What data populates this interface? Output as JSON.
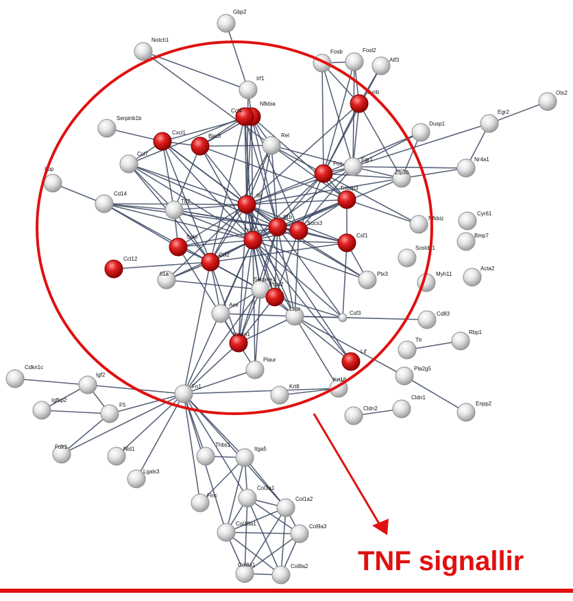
{
  "diagram": {
    "caption": "TNF signallir",
    "colors": {
      "highlight_circle": "#e01010",
      "arrow": "#e01010",
      "edge": "#3a4660",
      "node_grey_light": "#f2f2f2",
      "node_grey_dark": "#a9a9a9",
      "node_red_light": "#ff6b6b",
      "node_red_dark": "#b00000",
      "label": "#111111"
    },
    "nodes": [
      {
        "id": "Gbp2",
        "label": "Gbp2",
        "highlighted": false
      },
      {
        "id": "Notch1",
        "label": "Notch1",
        "highlighted": false
      },
      {
        "id": "Irf1",
        "label": "Irf1",
        "highlighted": false
      },
      {
        "id": "Nfkbia",
        "label": "Nfkbia",
        "highlighted": true
      },
      {
        "id": "Ccl4",
        "label": "Ccl4",
        "highlighted": true
      },
      {
        "id": "Serpinb1b",
        "label": "Serpinb1b",
        "highlighted": false
      },
      {
        "id": "Cxcl1",
        "label": "Cxcl1",
        "highlighted": true
      },
      {
        "id": "Birc3",
        "label": "Birc3",
        "highlighted": true
      },
      {
        "id": "Rel",
        "label": "Rel",
        "highlighted": false
      },
      {
        "id": "Ccl7",
        "label": "Ccl7",
        "highlighted": false
      },
      {
        "id": "Fosb",
        "label": "Fosb",
        "highlighted": false
      },
      {
        "id": "Fosl2",
        "label": "Fosl2",
        "highlighted": false
      },
      {
        "id": "Atf3",
        "label": "Atf3",
        "highlighted": false
      },
      {
        "id": "Junb",
        "label": "Junb",
        "highlighted": true
      },
      {
        "id": "Otx2",
        "label": "Otx2",
        "highlighted": false
      },
      {
        "id": "Egr2",
        "label": "Egr2",
        "highlighted": false
      },
      {
        "id": "Dusp1",
        "label": "Dusp1",
        "highlighted": false
      },
      {
        "id": "Fos",
        "label": "Fos",
        "highlighted": true
      },
      {
        "id": "Egr1",
        "label": "Egr1",
        "highlighted": false
      },
      {
        "id": "Zfp36",
        "label": "Zfp36",
        "highlighted": false
      },
      {
        "id": "Nr4a1",
        "label": "Nr4a1",
        "highlighted": false
      },
      {
        "id": "Lbp",
        "label": "Lbp",
        "highlighted": false
      },
      {
        "id": "Cd14",
        "label": "Cd14",
        "highlighted": false
      },
      {
        "id": "Tlr2",
        "label": "Tlr2",
        "highlighted": false
      },
      {
        "id": "Il6",
        "label": "Il6",
        "highlighted": true
      },
      {
        "id": "Tnfaip3",
        "label": "Tnfaip3",
        "highlighted": true
      },
      {
        "id": "Cyr61",
        "label": "Cyr61",
        "highlighted": false
      },
      {
        "id": "Nfkbiz",
        "label": "Nfkbiz",
        "highlighted": false
      },
      {
        "id": "Il1b",
        "label": "Il1b",
        "highlighted": true
      },
      {
        "id": "Socs3",
        "label": "Socs3",
        "highlighted": true
      },
      {
        "id": "Tnf",
        "label": "Tnf",
        "highlighted": true
      },
      {
        "id": "Csf1",
        "label": "Csf1",
        "highlighted": true
      },
      {
        "id": "Bmp7",
        "label": "Bmp7",
        "highlighted": false
      },
      {
        "id": "Sostdc1",
        "label": "Sostdc1",
        "highlighted": false
      },
      {
        "id": "Sele",
        "label": "Sele",
        "highlighted": true
      },
      {
        "id": "Ccl12",
        "label": "Ccl12",
        "highlighted": true
      },
      {
        "id": "Ccl2",
        "label": "Ccl2",
        "highlighted": true
      },
      {
        "id": "Il1a",
        "label": "Il1a",
        "highlighted": false
      },
      {
        "id": "Ptx3",
        "label": "Ptx3",
        "highlighted": false
      },
      {
        "id": "Myh11",
        "label": "Myh11",
        "highlighted": false
      },
      {
        "id": "Acta2",
        "label": "Acta2",
        "highlighted": false
      },
      {
        "id": "Serpine1",
        "label": "Serpine1",
        "highlighted": false
      },
      {
        "id": "Ptgs2",
        "label": "Ptgs2",
        "highlighted": true
      },
      {
        "id": "Ace",
        "label": "Ace",
        "highlighted": false
      },
      {
        "id": "Lepr",
        "label": "Lepr",
        "highlighted": false
      },
      {
        "id": "Csf3",
        "label": "Csf3",
        "highlighted": false,
        "small": true
      },
      {
        "id": "Cd83",
        "label": "Cd83",
        "highlighted": false
      },
      {
        "id": "Vcam1",
        "label": "Vcam1",
        "highlighted": true
      },
      {
        "id": "Ttr",
        "label": "Ttr",
        "highlighted": false
      },
      {
        "id": "Rbp1",
        "label": "Rbp1",
        "highlighted": false
      },
      {
        "id": "Lif",
        "label": "Lif",
        "highlighted": true
      },
      {
        "id": "Plaur",
        "label": "Plaur",
        "highlighted": false
      },
      {
        "id": "Pla2g5",
        "label": "Pla2g5",
        "highlighted": false
      },
      {
        "id": "Cdkn1c",
        "label": "Cdkn1c",
        "highlighted": false
      },
      {
        "id": "Igf2",
        "label": "Igf2",
        "highlighted": false
      },
      {
        "id": "Fn1",
        "label": "Fn1",
        "highlighted": false
      },
      {
        "id": "Krt18",
        "label": "Krt18",
        "highlighted": false
      },
      {
        "id": "Krt8",
        "label": "Krt8",
        "highlighted": false
      },
      {
        "id": "Cldn1",
        "label": "Cldn1",
        "highlighted": false
      },
      {
        "id": "Cldn2",
        "label": "Cldn2",
        "highlighted": false
      },
      {
        "id": "Enpp2",
        "label": "Enpp2",
        "highlighted": false
      },
      {
        "id": "Igfbp2",
        "label": "Igfbp2",
        "highlighted": false
      },
      {
        "id": "F5",
        "label": "F5",
        "highlighted": false
      },
      {
        "id": "Folr1",
        "label": "Folr1",
        "highlighted": false
      },
      {
        "id": "Nid1",
        "label": "Nid1",
        "highlighted": false
      },
      {
        "id": "Lgals3",
        "label": "Lgals3",
        "highlighted": false
      },
      {
        "id": "Thbs1",
        "label": "Thbs1",
        "highlighted": false
      },
      {
        "id": "Itga5",
        "label": "Itga5",
        "highlighted": false
      },
      {
        "id": "Flnc",
        "label": "Flnc",
        "highlighted": false
      },
      {
        "id": "Col3a1",
        "label": "Col3a1",
        "highlighted": false
      },
      {
        "id": "Col1a2",
        "label": "Col1a2",
        "highlighted": false
      },
      {
        "id": "Col18a1",
        "label": "Col18a1",
        "highlighted": false
      },
      {
        "id": "Col9a3",
        "label": "Col9a3",
        "highlighted": false
      },
      {
        "id": "Col8a1",
        "label": "Col8a1",
        "highlighted": false
      },
      {
        "id": "Col8a2",
        "label": "Col8a2",
        "highlighted": false
      }
    ],
    "edges": [
      [
        "Gbp2",
        "Irf1"
      ],
      [
        "Notch1",
        "Irf1"
      ],
      [
        "Notch1",
        "Rel"
      ],
      [
        "Irf1",
        "Nfkbia"
      ],
      [
        "Irf1",
        "Il6"
      ],
      [
        "Nfkbia",
        "Ccl4"
      ],
      [
        "Nfkbia",
        "Rel"
      ],
      [
        "Nfkbia",
        "Birc3"
      ],
      [
        "Nfkbia",
        "Il6"
      ],
      [
        "Nfkbia",
        "Tnf"
      ],
      [
        "Nfkbia",
        "Il1b"
      ],
      [
        "Nfkbia",
        "Cxcl1"
      ],
      [
        "Nfkbia",
        "Socs3"
      ],
      [
        "Nfkbia",
        "Tnfaip3"
      ],
      [
        "Ccl4",
        "Ccl7"
      ],
      [
        "Ccl4",
        "Ccl2"
      ],
      [
        "Ccl4",
        "Tnf"
      ],
      [
        "Ccl4",
        "Il6"
      ],
      [
        "Ccl4",
        "Il1b"
      ],
      [
        "Ccl4",
        "Birc3"
      ],
      [
        "Serpinb1b",
        "Cxcl1"
      ],
      [
        "Cxcl1",
        "Ccl7"
      ],
      [
        "Cxcl1",
        "Il6"
      ],
      [
        "Cxcl1",
        "Tnf"
      ],
      [
        "Cxcl1",
        "Il1b"
      ],
      [
        "Cxcl1",
        "Ccl2"
      ],
      [
        "Cxcl1",
        "Birc3"
      ],
      [
        "Cxcl1",
        "Tlr2"
      ],
      [
        "Birc3",
        "Rel"
      ],
      [
        "Birc3",
        "Tnf"
      ],
      [
        "Birc3",
        "Il6"
      ],
      [
        "Birc3",
        "Tnfaip3"
      ],
      [
        "Birc3",
        "Tlr2"
      ],
      [
        "Rel",
        "Il6"
      ],
      [
        "Rel",
        "Tnf"
      ],
      [
        "Rel",
        "Fos"
      ],
      [
        "Rel",
        "Il1b"
      ],
      [
        "Rel",
        "Tnfaip3"
      ],
      [
        "Rel",
        "Ccl2"
      ],
      [
        "Rel",
        "Egr1"
      ],
      [
        "Ccl7",
        "Ccl2"
      ],
      [
        "Ccl7",
        "Il6"
      ],
      [
        "Ccl7",
        "Tnf"
      ],
      [
        "Ccl7",
        "Tlr2"
      ],
      [
        "Ccl7",
        "Il1b"
      ],
      [
        "Fosb",
        "Fos"
      ],
      [
        "Fosb",
        "Junb"
      ],
      [
        "Fosb",
        "Egr1"
      ],
      [
        "Fosb",
        "Fosl2"
      ],
      [
        "Fosl2",
        "Fos"
      ],
      [
        "Fosl2",
        "Junb"
      ],
      [
        "Fosl2",
        "Egr1"
      ],
      [
        "Atf3",
        "Fos"
      ],
      [
        "Atf3",
        "Junb"
      ],
      [
        "Junb",
        "Fos"
      ],
      [
        "Junb",
        "Egr1"
      ],
      [
        "Junb",
        "Il6"
      ],
      [
        "Junb",
        "Zfp36"
      ],
      [
        "Otx2",
        "Egr2"
      ],
      [
        "Egr2",
        "Egr1"
      ],
      [
        "Egr2",
        "Nr4a1"
      ],
      [
        "Dusp1",
        "Fos"
      ],
      [
        "Dusp1",
        "Egr1"
      ],
      [
        "Dusp1",
        "Zfp36"
      ],
      [
        "Fos",
        "Egr1"
      ],
      [
        "Fos",
        "Il6"
      ],
      [
        "Fos",
        "Tnf"
      ],
      [
        "Fos",
        "Zfp36"
      ],
      [
        "Fos",
        "Il1b"
      ],
      [
        "Fos",
        "Tnfaip3"
      ],
      [
        "Fos",
        "Nfkbiz"
      ],
      [
        "Fos",
        "Socs3"
      ],
      [
        "Egr1",
        "Zfp36"
      ],
      [
        "Egr1",
        "Nr4a1"
      ],
      [
        "Egr1",
        "Tnf"
      ],
      [
        "Egr1",
        "Il6"
      ],
      [
        "Egr1",
        "Socs3"
      ],
      [
        "Zfp36",
        "Tnf"
      ],
      [
        "Zfp36",
        "Il6"
      ],
      [
        "Zfp36",
        "Nr4a1"
      ],
      [
        "Lbp",
        "Cd14"
      ],
      [
        "Cd14",
        "Tlr2"
      ],
      [
        "Cd14",
        "Il6"
      ],
      [
        "Cd14",
        "Tnf"
      ],
      [
        "Cd14",
        "Il1b"
      ],
      [
        "Cd14",
        "Ccl2"
      ],
      [
        "Cd14",
        "Sele"
      ],
      [
        "Tlr2",
        "Il6"
      ],
      [
        "Tlr2",
        "Tnf"
      ],
      [
        "Tlr2",
        "Il1b"
      ],
      [
        "Tlr2",
        "Ccl2"
      ],
      [
        "Tlr2",
        "Sele"
      ],
      [
        "Tlr2",
        "Socs3"
      ],
      [
        "Il6",
        "Tnf"
      ],
      [
        "Il6",
        "Il1b"
      ],
      [
        "Il6",
        "Socs3"
      ],
      [
        "Il6",
        "Ccl2"
      ],
      [
        "Il6",
        "Sele"
      ],
      [
        "Il6",
        "Csf1"
      ],
      [
        "Il6",
        "Serpine1"
      ],
      [
        "Il6",
        "Ptgs2"
      ],
      [
        "Il6",
        "Vcam1"
      ],
      [
        "Il6",
        "Lepr"
      ],
      [
        "Il6",
        "Tnfaip3"
      ],
      [
        "Il6",
        "Il1a"
      ],
      [
        "Il6",
        "Lif"
      ],
      [
        "Il6",
        "Ptx3"
      ],
      [
        "Tnf",
        "Il1b"
      ],
      [
        "Tnf",
        "Socs3"
      ],
      [
        "Tnf",
        "Ccl2"
      ],
      [
        "Tnf",
        "Sele"
      ],
      [
        "Tnf",
        "Csf1"
      ],
      [
        "Tnf",
        "Serpine1"
      ],
      [
        "Tnf",
        "Ptgs2"
      ],
      [
        "Tnf",
        "Vcam1"
      ],
      [
        "Tnf",
        "Lepr"
      ],
      [
        "Tnf",
        "Tnfaip3"
      ],
      [
        "Tnf",
        "Il1a"
      ],
      [
        "Tnf",
        "Ace"
      ],
      [
        "Tnf",
        "Ptx3"
      ],
      [
        "Tnf",
        "Csf3"
      ],
      [
        "Tnf",
        "Fn1"
      ],
      [
        "Tnf",
        "Plaur"
      ],
      [
        "Tnf",
        "Lif"
      ],
      [
        "Il1b",
        "Socs3"
      ],
      [
        "Il1b",
        "Ccl2"
      ],
      [
        "Il1b",
        "Ptgs2"
      ],
      [
        "Il1b",
        "Serpine1"
      ],
      [
        "Il1b",
        "Csf1"
      ],
      [
        "Il1b",
        "Tnfaip3"
      ],
      [
        "Il1b",
        "Csf3"
      ],
      [
        "Il1b",
        "Vcam1"
      ],
      [
        "Il1b",
        "Sele"
      ],
      [
        "Il1b",
        "Ptx3"
      ],
      [
        "Il1b",
        "Lepr"
      ],
      [
        "Socs3",
        "Tnfaip3"
      ],
      [
        "Socs3",
        "Csf1"
      ],
      [
        "Socs3",
        "Lepr"
      ],
      [
        "Socs3",
        "Ptgs2"
      ],
      [
        "Tnfaip3",
        "Nfkbiz"
      ],
      [
        "Tnfaip3",
        "Csf1"
      ],
      [
        "Csf1",
        "Csf3"
      ],
      [
        "Csf1",
        "Ccl2"
      ],
      [
        "Csf1",
        "Ptx3"
      ],
      [
        "Sele",
        "Ccl2"
      ],
      [
        "Sele",
        "Vcam1"
      ],
      [
        "Ccl12",
        "Ccl2"
      ],
      [
        "Ccl2",
        "Il1a"
      ],
      [
        "Ccl2",
        "Serpine1"
      ],
      [
        "Ccl2",
        "Vcam1"
      ],
      [
        "Ccl2",
        "Ptgs2"
      ],
      [
        "Ccl2",
        "Ace"
      ],
      [
        "Ccl2",
        "Fn1"
      ],
      [
        "Il1a",
        "Serpine1"
      ],
      [
        "Serpine1",
        "Ptgs2"
      ],
      [
        "Serpine1",
        "Plaur"
      ],
      [
        "Serpine1",
        "Fn1"
      ],
      [
        "Serpine1",
        "Lepr"
      ],
      [
        "Serpine1",
        "Ace"
      ],
      [
        "Serpine1",
        "Vcam1"
      ],
      [
        "Ptgs2",
        "Lepr"
      ],
      [
        "Ptgs2",
        "Vcam1"
      ],
      [
        "Ptgs2",
        "Csf3"
      ],
      [
        "Ace",
        "Vcam1"
      ],
      [
        "Ace",
        "Lepr"
      ],
      [
        "Lepr",
        "Csf3"
      ],
      [
        "Lepr",
        "Lif"
      ],
      [
        "Lepr",
        "Vcam1"
      ],
      [
        "Lepr",
        "Cd83"
      ],
      [
        "Lepr",
        "Pla2g5"
      ],
      [
        "Lepr",
        "Krt18"
      ],
      [
        "Vcam1",
        "Fn1"
      ],
      [
        "Vcam1",
        "Plaur"
      ],
      [
        "Plaur",
        "Fn1"
      ],
      [
        "Ttr",
        "Rbp1"
      ],
      [
        "Fn1",
        "Igf2"
      ],
      [
        "Fn1",
        "Krt18"
      ],
      [
        "Fn1",
        "F5"
      ],
      [
        "Fn1",
        "Thbs1"
      ],
      [
        "Fn1",
        "Itga5"
      ],
      [
        "Fn1",
        "Col3a1"
      ],
      [
        "Fn1",
        "Col1a2"
      ],
      [
        "Fn1",
        "Col18a1"
      ],
      [
        "Fn1",
        "Folr1"
      ],
      [
        "Fn1",
        "Nid1"
      ],
      [
        "Fn1",
        "Lgals3"
      ],
      [
        "Fn1",
        "Flnc"
      ],
      [
        "Cdkn1c",
        "Igf2"
      ],
      [
        "Igf2",
        "Igfbp2"
      ],
      [
        "Igf2",
        "F5"
      ],
      [
        "Igfbp2",
        "F5"
      ],
      [
        "F5",
        "Folr1"
      ],
      [
        "Krt18",
        "Krt8"
      ],
      [
        "Cldn1",
        "Cldn2"
      ],
      [
        "Pla2g5",
        "Enpp2"
      ],
      [
        "Thbs1",
        "Itga5"
      ],
      [
        "Itga5",
        "Col3a1"
      ],
      [
        "Itga5",
        "Col1a2"
      ],
      [
        "Itga5",
        "Col18a1"
      ],
      [
        "Flnc",
        "Itga5"
      ],
      [
        "Col3a1",
        "Col1a2"
      ],
      [
        "Col3a1",
        "Col18a1"
      ],
      [
        "Col3a1",
        "Col9a3"
      ],
      [
        "Col3a1",
        "Col8a1"
      ],
      [
        "Col3a1",
        "Col8a2"
      ],
      [
        "Col1a2",
        "Col18a1"
      ],
      [
        "Col1a2",
        "Col9a3"
      ],
      [
        "Col1a2",
        "Col8a1"
      ],
      [
        "Col1a2",
        "Col8a2"
      ],
      [
        "Col18a1",
        "Col9a3"
      ],
      [
        "Col18a1",
        "Col8a1"
      ],
      [
        "Col18a1",
        "Col8a2"
      ],
      [
        "Col9a3",
        "Col8a1"
      ],
      [
        "Col9a3",
        "Col8a2"
      ],
      [
        "Col8a1",
        "Col8a2"
      ]
    ]
  }
}
